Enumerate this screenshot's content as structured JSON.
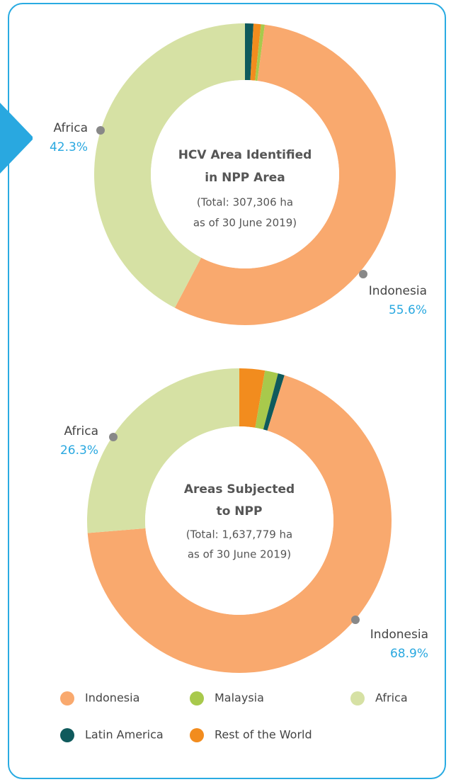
{
  "chart_data": [
    {
      "type": "donut",
      "title": [
        "HCV Area Identified",
        "in NPP Area"
      ],
      "subtitle": [
        "(Total: 307,306 ha",
        "as of 30 June 2019)"
      ],
      "categories": [
        "Latin America",
        "Rest of the World",
        "Malaysia",
        "Indonesia",
        "Africa"
      ],
      "values": [
        0.9,
        0.8,
        0.4,
        55.6,
        42.3
      ],
      "value_labels": [
        null,
        null,
        null,
        "55.6%",
        "42.3%"
      ],
      "colors": [
        "#0f5a5c",
        "#f28c1e",
        "#a8c94c",
        "#f9a96e",
        "#d6e1a4"
      ]
    },
    {
      "type": "donut",
      "title": [
        "Areas Subjected",
        "to NPP"
      ],
      "subtitle": [
        "(Total: 1,637,779 ha",
        "as of 30 June 2019)"
      ],
      "categories": [
        "Rest of the World",
        "Malaysia",
        "Latin America",
        "Indonesia",
        "Africa"
      ],
      "values": [
        2.7,
        1.4,
        0.7,
        68.9,
        26.3
      ],
      "value_labels": [
        null,
        null,
        null,
        "68.9%",
        "26.3%"
      ],
      "colors": [
        "#f28c1e",
        "#a8c94c",
        "#0f5a5c",
        "#f9a96e",
        "#d6e1a4"
      ]
    }
  ],
  "legend": [
    {
      "name": "Indonesia",
      "color": "#f9a96e"
    },
    {
      "name": "Malaysia",
      "color": "#a8c94c"
    },
    {
      "name": "Africa",
      "color": "#d6e1a4"
    },
    {
      "name": "Latin America",
      "color": "#0f5a5c"
    },
    {
      "name": "Rest of the World",
      "color": "#f28c1e"
    }
  ]
}
